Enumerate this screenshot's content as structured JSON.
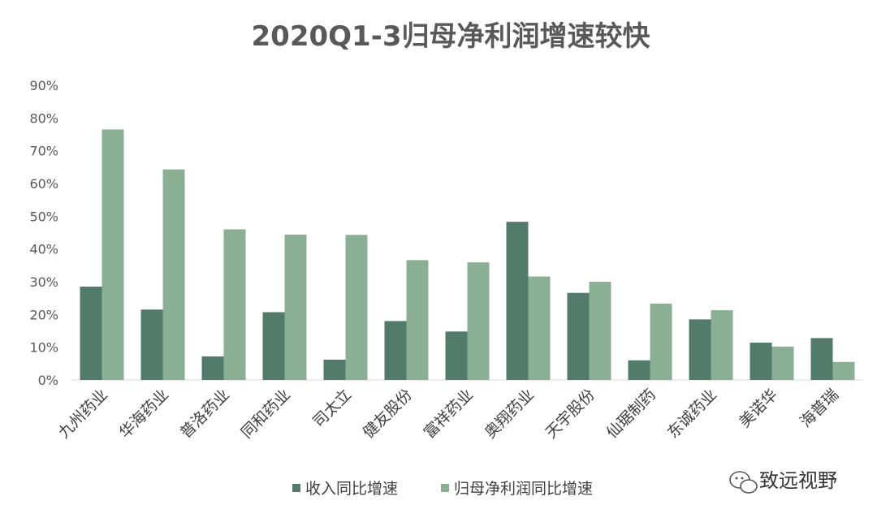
{
  "chart_data": {
    "type": "bar",
    "title": "2020Q1-3归母净利润增速较快",
    "categories": [
      "九州药业",
      "华海药业",
      "普洛药业",
      "同和药业",
      "司太立",
      "健友股份",
      "富祥药业",
      "奥翔药业",
      "天宇股份",
      "仙琚制药",
      "东诚药业",
      "美诺华",
      "海普瑞"
    ],
    "series": [
      {
        "name": "收入同比增速",
        "color": "#527B6C",
        "values": [
          28.5,
          21.5,
          7.2,
          20.7,
          6.2,
          18.0,
          14.8,
          48.3,
          26.6,
          6.0,
          18.5,
          11.4,
          12.8
        ]
      },
      {
        "name": "归母净利润同比增速",
        "color": "#8AAF92",
        "values": [
          76.5,
          64.3,
          46.0,
          44.4,
          44.3,
          36.6,
          35.9,
          31.6,
          30.0,
          23.3,
          21.3,
          10.2,
          5.5
        ]
      }
    ],
    "ylim": [
      0,
      90
    ],
    "yticks": [
      "0%",
      "10%",
      "20%",
      "30%",
      "40%",
      "50%",
      "60%",
      "70%",
      "80%",
      "90%"
    ],
    "ytick_values": [
      0,
      10,
      20,
      30,
      40,
      50,
      60,
      70,
      80,
      90
    ],
    "grid": false,
    "legend": "bottom"
  },
  "watermark": {
    "text": "致远视野",
    "icon": "wechat-icon"
  }
}
